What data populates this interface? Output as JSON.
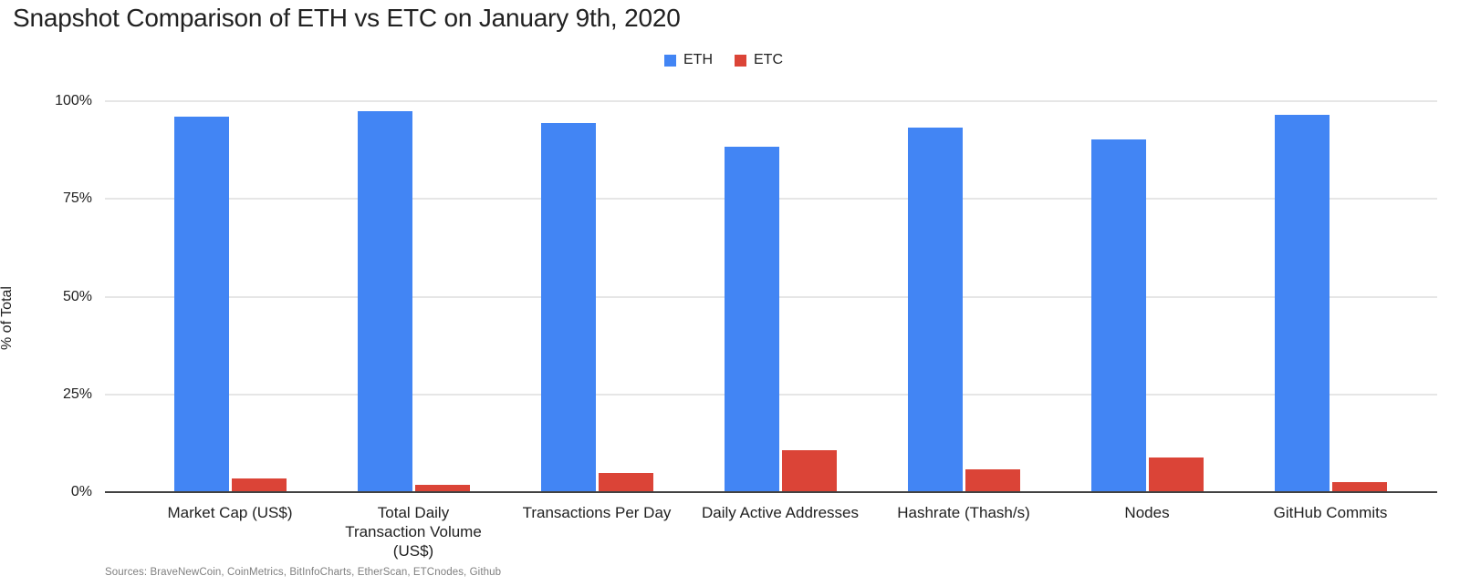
{
  "title": "Snapshot Comparison of ETH vs ETC on January 9th, 2020",
  "legend": [
    {
      "label": "ETH",
      "color": "#4285f4"
    },
    {
      "label": "ETC",
      "color": "#db4437"
    }
  ],
  "y_axis": {
    "title": "% of Total",
    "ticks": [
      {
        "label": "100%",
        "value": 100
      },
      {
        "label": "75%",
        "value": 75
      },
      {
        "label": "50%",
        "value": 50
      },
      {
        "label": "25%",
        "value": 25
      },
      {
        "label": "0%",
        "value": 0
      }
    ]
  },
  "footer": "Sources: BraveNewCoin, CoinMetrics, BitInfoCharts, EtherScan, ETCnodes, Github",
  "chart_data": {
    "type": "bar",
    "title": "Snapshot Comparison of ETH vs ETC on January 9th, 2020",
    "categories": [
      "Market Cap (US$)",
      "Total Daily\nTransaction Volume\n(US$)",
      "Transactions Per Day",
      "Daily Active Addresses",
      "Hashrate (Thash/s)",
      "Nodes",
      "GitHub Commits"
    ],
    "series": [
      {
        "name": "ETH",
        "color": "#4285f4",
        "values": [
          96.0,
          97.5,
          94.3,
          88.4,
          93.2,
          90.2,
          96.4
        ]
      },
      {
        "name": "ETC",
        "color": "#db4437",
        "values": [
          3.4,
          1.8,
          5.0,
          10.7,
          5.8,
          8.8,
          2.6
        ]
      }
    ],
    "xlabel": "",
    "ylabel": "% of Total",
    "ylim": [
      0,
      100
    ],
    "yticks": [
      0,
      25,
      50,
      75,
      100
    ],
    "grid": true,
    "legend_position": "top-center"
  }
}
